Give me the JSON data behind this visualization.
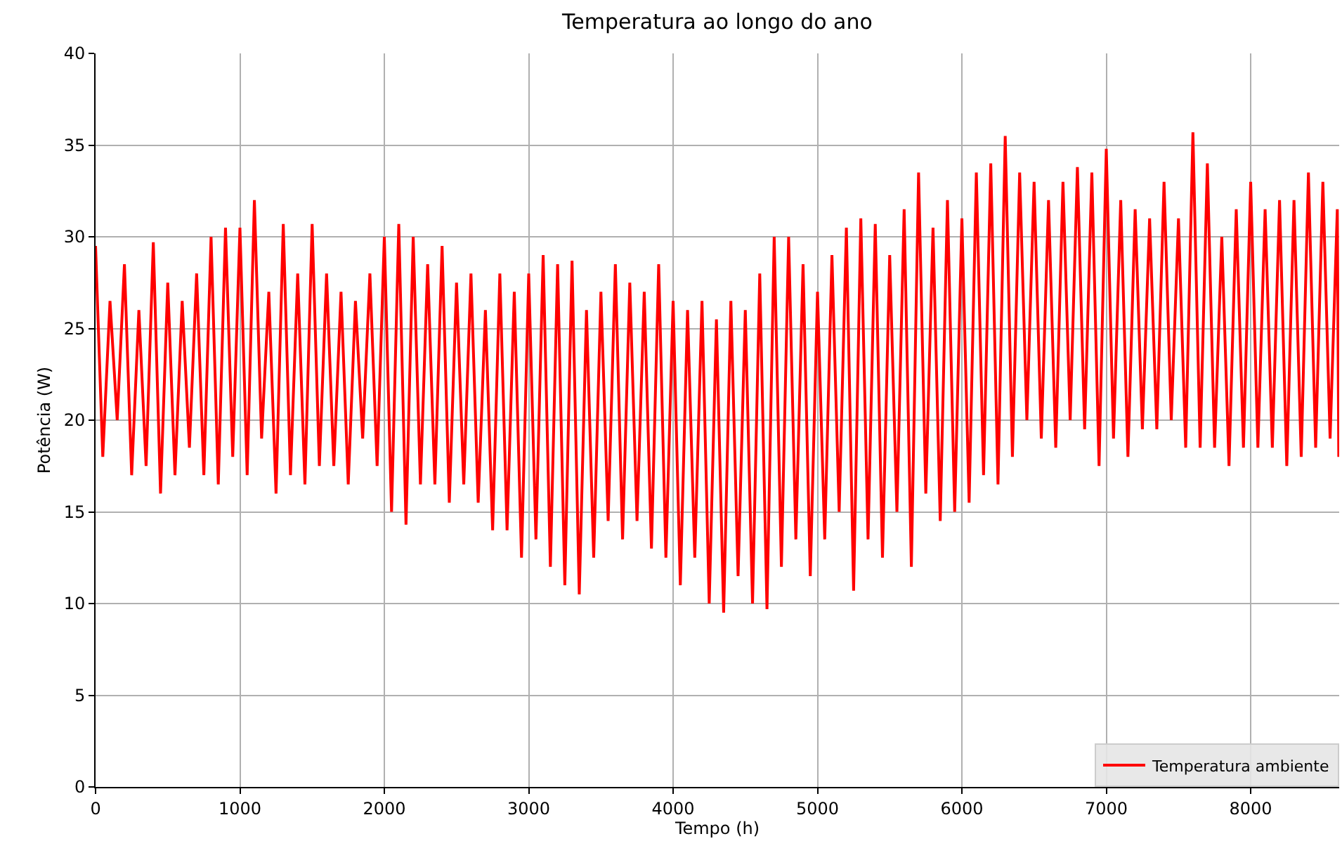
{
  "chart_data": {
    "type": "line",
    "title": "Temperatura ao longo do ano",
    "xlabel": "Tempo (h)",
    "ylabel": "Potência (W)",
    "xlim": [
      0,
      8613
    ],
    "xticks": [
      0,
      1000,
      2000,
      3000,
      4000,
      5000,
      6000,
      7000,
      8000
    ],
    "ylim": [
      0,
      40
    ],
    "yticks": [
      0,
      5,
      10,
      15,
      20,
      25,
      30,
      35,
      40
    ],
    "grid": true,
    "legend": "bottom right",
    "marker": "none",
    "line_style": "solid",
    "x": [
      0,
      50,
      100,
      150,
      200,
      250,
      300,
      350,
      400,
      450,
      500,
      550,
      600,
      650,
      700,
      750,
      800,
      850,
      900,
      950,
      1000,
      1050,
      1100,
      1150,
      1200,
      1250,
      1300,
      1350,
      1400,
      1450,
      1500,
      1550,
      1600,
      1650,
      1700,
      1750,
      1800,
      1850,
      1900,
      1950,
      2000,
      2050,
      2100,
      2150,
      2200,
      2250,
      2300,
      2350,
      2400,
      2450,
      2500,
      2550,
      2600,
      2650,
      2700,
      2750,
      2800,
      2850,
      2900,
      2950,
      3000,
      3050,
      3100,
      3150,
      3200,
      3250,
      3300,
      3350,
      3400,
      3450,
      3500,
      3550,
      3600,
      3650,
      3700,
      3750,
      3800,
      3850,
      3900,
      3950,
      4000,
      4050,
      4100,
      4150,
      4200,
      4250,
      4300,
      4350,
      4400,
      4450,
      4500,
      4550,
      4600,
      4650,
      4700,
      4750,
      4800,
      4850,
      4900,
      4950,
      5000,
      5050,
      5100,
      5150,
      5200,
      5250,
      5300,
      5350,
      5400,
      5450,
      5500,
      5550,
      5600,
      5650,
      5700,
      5750,
      5800,
      5850,
      5900,
      5950,
      6000,
      6050,
      6100,
      6150,
      6200,
      6250,
      6300,
      6350,
      6400,
      6450,
      6500,
      6550,
      6600,
      6650,
      6700,
      6750,
      6800,
      6850,
      6900,
      6950,
      7000,
      7050,
      7100,
      7150,
      7200,
      7250,
      7300,
      7350,
      7400,
      7450,
      7500,
      7550,
      7600,
      7650,
      7700,
      7750,
      7800,
      7850,
      7900,
      7950,
      8000,
      8050,
      8100,
      8150,
      8200,
      8250,
      8300,
      8350,
      8400,
      8450,
      8500,
      8550,
      8600,
      8610
    ],
    "series": [
      {
        "name": "Temperatura ambiente",
        "color": "#ff0000",
        "values": [
          29.5,
          18,
          26.5,
          20,
          28.5,
          17,
          26,
          17.5,
          29.7,
          16,
          27.5,
          17,
          26.5,
          18.5,
          28,
          17,
          30,
          16.5,
          30.5,
          18,
          30.5,
          17,
          32,
          19,
          27,
          16,
          30.7,
          17,
          28,
          16.5,
          30.7,
          17.5,
          28,
          17.5,
          27,
          16.5,
          26.5,
          19,
          28,
          17.5,
          30,
          15,
          30.7,
          14.3,
          30,
          16.5,
          28.5,
          16.5,
          29.5,
          15.5,
          27.5,
          16.5,
          28,
          15.5,
          26,
          14,
          28,
          14,
          27,
          12.5,
          28,
          13.5,
          29,
          12,
          28.5,
          11,
          28.7,
          10.5,
          26,
          12.5,
          27,
          14.5,
          28.5,
          13.5,
          27.5,
          14.5,
          27,
          13,
          28.5,
          12.5,
          26.5,
          11,
          26,
          12.5,
          26.5,
          10,
          25.5,
          9.5,
          26.5,
          11.5,
          26,
          10,
          28,
          9.7,
          30,
          12,
          30,
          13.5,
          28.5,
          11.5,
          27,
          13.5,
          29,
          15,
          30.5,
          10.7,
          31,
          13.5,
          30.7,
          12.5,
          29,
          15,
          31.5,
          12,
          33.5,
          16,
          30.5,
          14.5,
          32,
          15,
          31,
          15.5,
          33.5,
          17,
          34,
          16.5,
          35.5,
          18,
          33.5,
          20,
          33,
          19,
          32,
          18.5,
          33,
          20,
          33.8,
          19.5,
          33.5,
          17.5,
          34.8,
          19,
          32,
          18,
          31.5,
          19.5,
          31,
          19.5,
          33,
          20,
          31,
          18.5,
          35.7,
          18.5,
          34,
          18.5,
          30,
          17.5,
          31.5,
          18.5,
          33,
          18.5,
          31.5,
          18.5,
          32,
          17.5,
          32,
          18,
          33.5,
          18.5,
          33,
          19,
          31.5,
          18
        ]
      }
    ]
  }
}
